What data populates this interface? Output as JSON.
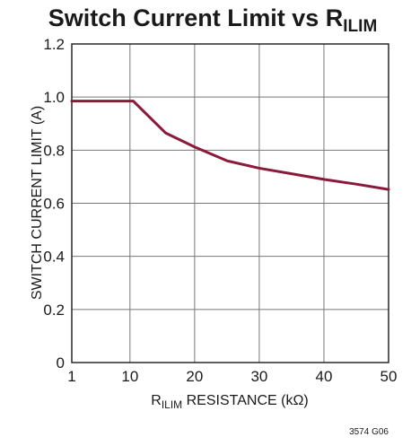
{
  "chart_data": {
    "type": "line",
    "title": {
      "main": "Switch Current Limit vs R",
      "subscript": "ILIM"
    },
    "xlabel": {
      "prefix": "R",
      "subscript": "ILIM",
      "suffix": " RESISTANCE (kΩ)"
    },
    "ylabel": "SWITCH CURRENT LIMIT (A)",
    "xlim": [
      1,
      50
    ],
    "ylim": [
      0,
      1.2
    ],
    "x_ticks": [
      1,
      10,
      20,
      30,
      40,
      50
    ],
    "x_tick_labels": [
      "1",
      "10",
      "20",
      "30",
      "40",
      "50"
    ],
    "y_ticks": [
      0,
      0.2,
      0.4,
      0.6,
      0.8,
      1.0,
      1.2
    ],
    "y_tick_labels": [
      "0",
      "0.2",
      "0.4",
      "0.6",
      "0.8",
      "1.0",
      "1.2"
    ],
    "grid": true,
    "series": [
      {
        "color": "#8b1a3a",
        "x": [
          1,
          5,
          10.5,
          15.5,
          20,
          25,
          30,
          35,
          40,
          45,
          50
        ],
        "y": [
          0.985,
          0.985,
          0.985,
          0.865,
          0.812,
          0.76,
          0.732,
          0.711,
          0.69,
          0.672,
          0.652
        ]
      }
    ],
    "figure_code": "3574 G06"
  }
}
